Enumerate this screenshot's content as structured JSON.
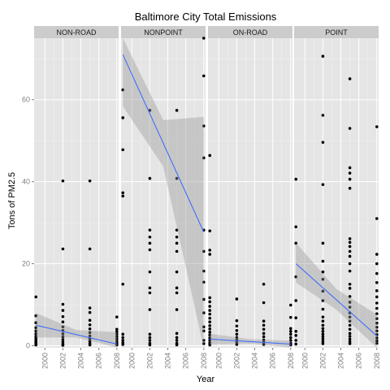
{
  "chart_data": {
    "type": "scatter",
    "title": "Baltimore City Total Emissions",
    "xlabel": "Year",
    "ylabel": "Tons of PM2.5",
    "xlim": [
      1998.8,
      2008.2
    ],
    "ylim": [
      -0.5,
      75
    ],
    "x_ticks": [
      "2000",
      "2002",
      "2004",
      "2006",
      "2008"
    ],
    "y_ticks": [
      "0",
      "20",
      "40",
      "60"
    ],
    "grid": true,
    "smoother": "linear fit with confidence band",
    "colors": {
      "panel": "#e5e5e5",
      "grid_major": "#ffffff",
      "grid_minor": "#f2f2f2",
      "strip": "#cccccc",
      "point": "#000000",
      "fit_line": "#3366ff",
      "band": "#999999"
    },
    "panels": [
      {
        "label": "NON-ROAD",
        "points": [
          [
            1999,
            11.9
          ],
          [
            1999,
            7.3
          ],
          [
            1999,
            5.6
          ],
          [
            1999,
            4.4
          ],
          [
            1999,
            3.6
          ],
          [
            1999,
            2.9
          ],
          [
            1999,
            2.3
          ],
          [
            1999,
            1.8
          ],
          [
            1999,
            1.3
          ],
          [
            1999,
            0.9
          ],
          [
            1999,
            0.5
          ],
          [
            1999,
            0.2
          ],
          [
            2002,
            40.2
          ],
          [
            2002,
            23.6
          ],
          [
            2002,
            10.1
          ],
          [
            2002,
            8.6
          ],
          [
            2002,
            7.1
          ],
          [
            2002,
            5.8
          ],
          [
            2002,
            4.6
          ],
          [
            2002,
            3.7
          ],
          [
            2002,
            2.9
          ],
          [
            2002,
            2.2
          ],
          [
            2002,
            1.5
          ],
          [
            2002,
            0.9
          ],
          [
            2002,
            0.4
          ],
          [
            2002,
            0.1
          ],
          [
            2005,
            40.2
          ],
          [
            2005,
            23.6
          ],
          [
            2005,
            9.2
          ],
          [
            2005,
            8.1
          ],
          [
            2005,
            6.2
          ],
          [
            2005,
            5.1
          ],
          [
            2005,
            4.1
          ],
          [
            2005,
            3.2
          ],
          [
            2005,
            2.4
          ],
          [
            2005,
            1.7
          ],
          [
            2005,
            1.1
          ],
          [
            2005,
            0.6
          ],
          [
            2005,
            0.2
          ],
          [
            2008,
            7.0
          ],
          [
            2008,
            4.0
          ],
          [
            2008,
            3.4
          ],
          [
            2008,
            2.8
          ],
          [
            2008,
            2.2
          ],
          [
            2008,
            1.6
          ],
          [
            2008,
            1.0
          ],
          [
            2008,
            0.6
          ],
          [
            2008,
            0.2
          ]
        ],
        "fit": {
          "x": [
            1999,
            2008
          ],
          "y": [
            5.0,
            0.4
          ]
        },
        "band": {
          "x": [
            1999,
            2003.5,
            2008
          ],
          "lower": [
            2.0,
            2.0,
            -0.4
          ],
          "upper": [
            8.0,
            3.8,
            3.3
          ]
        }
      },
      {
        "label": "NONPOINT",
        "points": [
          [
            1999,
            62.4
          ],
          [
            1999,
            55.6
          ],
          [
            1999,
            47.8
          ],
          [
            1999,
            37.3
          ],
          [
            1999,
            36.5
          ],
          [
            1999,
            15.0
          ],
          [
            1999,
            2.8
          ],
          [
            1999,
            2.0
          ],
          [
            1999,
            1.3
          ],
          [
            1999,
            0.7
          ],
          [
            1999,
            0.3
          ],
          [
            2002,
            57.4
          ],
          [
            2002,
            40.8
          ],
          [
            2002,
            28.2
          ],
          [
            2002,
            26.5
          ],
          [
            2002,
            25.0
          ],
          [
            2002,
            23.4
          ],
          [
            2002,
            18.0
          ],
          [
            2002,
            14.1
          ],
          [
            2002,
            12.9
          ],
          [
            2002,
            8.8
          ],
          [
            2002,
            2.8
          ],
          [
            2002,
            2.0
          ],
          [
            2002,
            1.3
          ],
          [
            2002,
            0.6
          ],
          [
            2002,
            0.2
          ],
          [
            2005,
            57.4
          ],
          [
            2005,
            40.8
          ],
          [
            2005,
            28.2
          ],
          [
            2005,
            26.5
          ],
          [
            2005,
            25.0
          ],
          [
            2005,
            23.0
          ],
          [
            2005,
            18.0
          ],
          [
            2005,
            14.1
          ],
          [
            2005,
            12.9
          ],
          [
            2005,
            8.8
          ],
          [
            2005,
            3.0
          ],
          [
            2005,
            2.0
          ],
          [
            2005,
            1.3
          ],
          [
            2005,
            0.6
          ],
          [
            2005,
            0.2
          ],
          [
            2008,
            75.0
          ],
          [
            2008,
            65.8
          ],
          [
            2008,
            53.6
          ],
          [
            2008,
            45.8
          ],
          [
            2008,
            28.2
          ],
          [
            2008,
            23.0
          ],
          [
            2008,
            18.2
          ],
          [
            2008,
            15.5
          ],
          [
            2008,
            11.3
          ],
          [
            2008,
            8.0
          ],
          [
            2008,
            4.6
          ],
          [
            2008,
            3.6
          ],
          [
            2008,
            1.3
          ],
          [
            2008,
            0.5
          ]
        ],
        "fit": {
          "x": [
            1999,
            2008
          ],
          "y": [
            71.0,
            27.7
          ]
        },
        "band": {
          "x": [
            1999,
            2003.5,
            2008
          ],
          "lower": [
            58.4,
            43.7,
            -0.5
          ],
          "upper": [
            75.0,
            55.0,
            55.8
          ]
        }
      },
      {
        "label": "ON-ROAD",
        "points": [
          [
            1999,
            46.4
          ],
          [
            1999,
            28.0
          ],
          [
            1999,
            23.3
          ],
          [
            1999,
            22.3
          ],
          [
            1999,
            11.7
          ],
          [
            1999,
            10.7
          ],
          [
            1999,
            9.6
          ],
          [
            1999,
            8.6
          ],
          [
            1999,
            7.7
          ],
          [
            1999,
            6.7
          ],
          [
            1999,
            5.8
          ],
          [
            1999,
            4.9
          ],
          [
            1999,
            4.1
          ],
          [
            1999,
            3.3
          ],
          [
            1999,
            2.6
          ],
          [
            1999,
            1.9
          ],
          [
            1999,
            1.3
          ],
          [
            1999,
            0.7
          ],
          [
            1999,
            0.2
          ],
          [
            2002,
            11.4
          ],
          [
            2002,
            6.1
          ],
          [
            2002,
            4.8
          ],
          [
            2002,
            3.7
          ],
          [
            2002,
            2.8
          ],
          [
            2002,
            2.0
          ],
          [
            2002,
            1.4
          ],
          [
            2002,
            0.8
          ],
          [
            2002,
            0.3
          ],
          [
            2005,
            15.0
          ],
          [
            2005,
            10.5
          ],
          [
            2005,
            6.0
          ],
          [
            2005,
            5.0
          ],
          [
            2005,
            4.0
          ],
          [
            2005,
            3.0
          ],
          [
            2005,
            2.2
          ],
          [
            2005,
            1.4
          ],
          [
            2005,
            0.8
          ],
          [
            2005,
            0.3
          ],
          [
            2008,
            9.9
          ],
          [
            2008,
            6.9
          ],
          [
            2008,
            4.2
          ],
          [
            2008,
            3.5
          ],
          [
            2008,
            2.8
          ],
          [
            2008,
            2.0
          ],
          [
            2008,
            1.3
          ],
          [
            2008,
            0.6
          ],
          [
            2008,
            0.2
          ]
        ],
        "fit": {
          "x": [
            1999,
            2008
          ],
          "y": [
            1.6,
            0.4
          ]
        },
        "band": {
          "x": [
            1999,
            2003.5,
            2008
          ],
          "lower": [
            0.3,
            0.5,
            -0.4
          ],
          "upper": [
            2.9,
            1.6,
            1.2
          ]
        }
      },
      {
        "label": "POINT",
        "points": [
          [
            1999,
            40.6
          ],
          [
            1999,
            29.0
          ],
          [
            1999,
            25.0
          ],
          [
            1999,
            16.8
          ],
          [
            1999,
            11.0
          ],
          [
            1999,
            6.8
          ],
          [
            1999,
            3.5
          ],
          [
            1999,
            2.5
          ],
          [
            1999,
            1.3
          ],
          [
            1999,
            0.4
          ],
          [
            2002,
            70.6
          ],
          [
            2002,
            56.2
          ],
          [
            2002,
            49.6
          ],
          [
            2002,
            39.3
          ],
          [
            2002,
            25.0
          ],
          [
            2002,
            20.6
          ],
          [
            2002,
            18.0
          ],
          [
            2002,
            16.2
          ],
          [
            2002,
            13.3
          ],
          [
            2002,
            11.0
          ],
          [
            2002,
            8.9
          ],
          [
            2002,
            7.0
          ],
          [
            2002,
            6.0
          ],
          [
            2002,
            5.0
          ],
          [
            2002,
            4.2
          ],
          [
            2002,
            3.5
          ],
          [
            2002,
            2.8
          ],
          [
            2002,
            2.2
          ],
          [
            2002,
            1.6
          ],
          [
            2002,
            1.0
          ],
          [
            2002,
            0.5
          ],
          [
            2005,
            65.1
          ],
          [
            2005,
            53.0
          ],
          [
            2005,
            43.4
          ],
          [
            2005,
            42.1
          ],
          [
            2005,
            40.6
          ],
          [
            2005,
            38.4
          ],
          [
            2005,
            26.1
          ],
          [
            2005,
            25.2
          ],
          [
            2005,
            24.2
          ],
          [
            2005,
            23.0
          ],
          [
            2005,
            21.8
          ],
          [
            2005,
            20.0
          ],
          [
            2005,
            18.2
          ],
          [
            2005,
            15.0
          ],
          [
            2005,
            14.0
          ],
          [
            2005,
            12.0
          ],
          [
            2005,
            10.6
          ],
          [
            2005,
            9.4
          ],
          [
            2005,
            8.0
          ],
          [
            2005,
            7.0
          ],
          [
            2005,
            6.0
          ],
          [
            2005,
            5.0
          ],
          [
            2005,
            4.0
          ],
          [
            2005,
            3.0
          ],
          [
            2005,
            2.3
          ],
          [
            2005,
            1.6
          ],
          [
            2005,
            1.0
          ],
          [
            2005,
            0.5
          ],
          [
            2008,
            53.4
          ],
          [
            2008,
            31.0
          ],
          [
            2008,
            22.3
          ],
          [
            2008,
            20.0
          ],
          [
            2008,
            17.6
          ],
          [
            2008,
            15.4
          ],
          [
            2008,
            13.4
          ],
          [
            2008,
            11.9
          ],
          [
            2008,
            10.4
          ],
          [
            2008,
            9.1
          ],
          [
            2008,
            7.8
          ],
          [
            2008,
            6.6
          ],
          [
            2008,
            5.5
          ],
          [
            2008,
            4.5
          ],
          [
            2008,
            3.6
          ],
          [
            2008,
            2.7
          ],
          [
            2008,
            1.9
          ],
          [
            2008,
            1.2
          ],
          [
            2008,
            0.6
          ]
        ],
        "fit": {
          "x": [
            1999,
            2008
          ],
          "y": [
            20.0,
            2.4
          ]
        },
        "band": {
          "x": [
            1999,
            2003.5,
            2008
          ],
          "lower": [
            15.4,
            8.8,
            -0.5
          ],
          "upper": [
            25.1,
            13.8,
            7.6
          ]
        }
      }
    ]
  }
}
